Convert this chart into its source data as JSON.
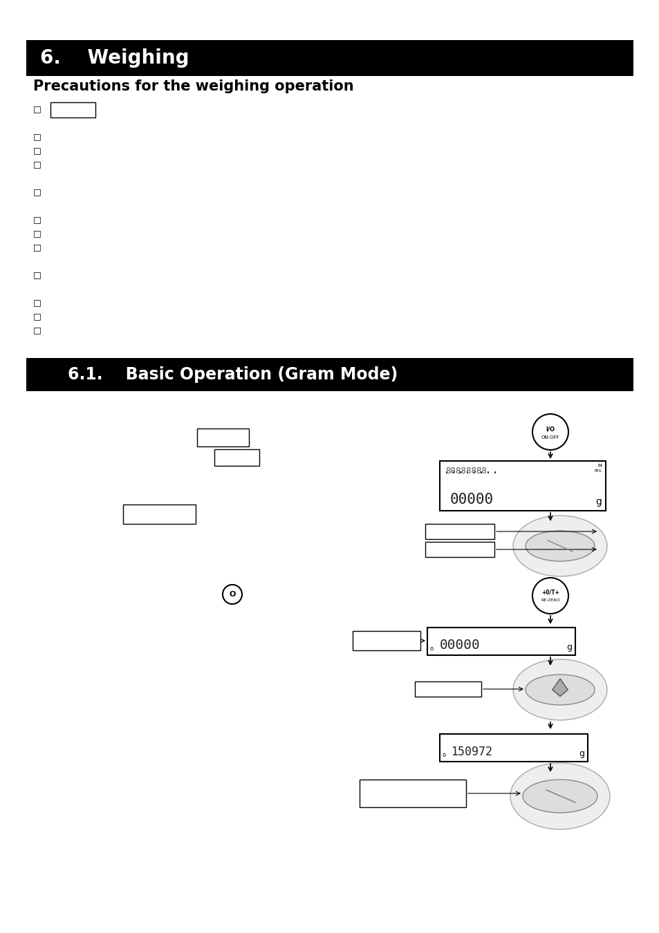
{
  "title1": "6.    Weighing",
  "title2": "Precautions for the weighing operation",
  "title3": "6.1.    Basic Operation (Gram Mode)",
  "background_color": "#ffffff",
  "header_bg": "#000000",
  "header_fg": "#ffffff"
}
